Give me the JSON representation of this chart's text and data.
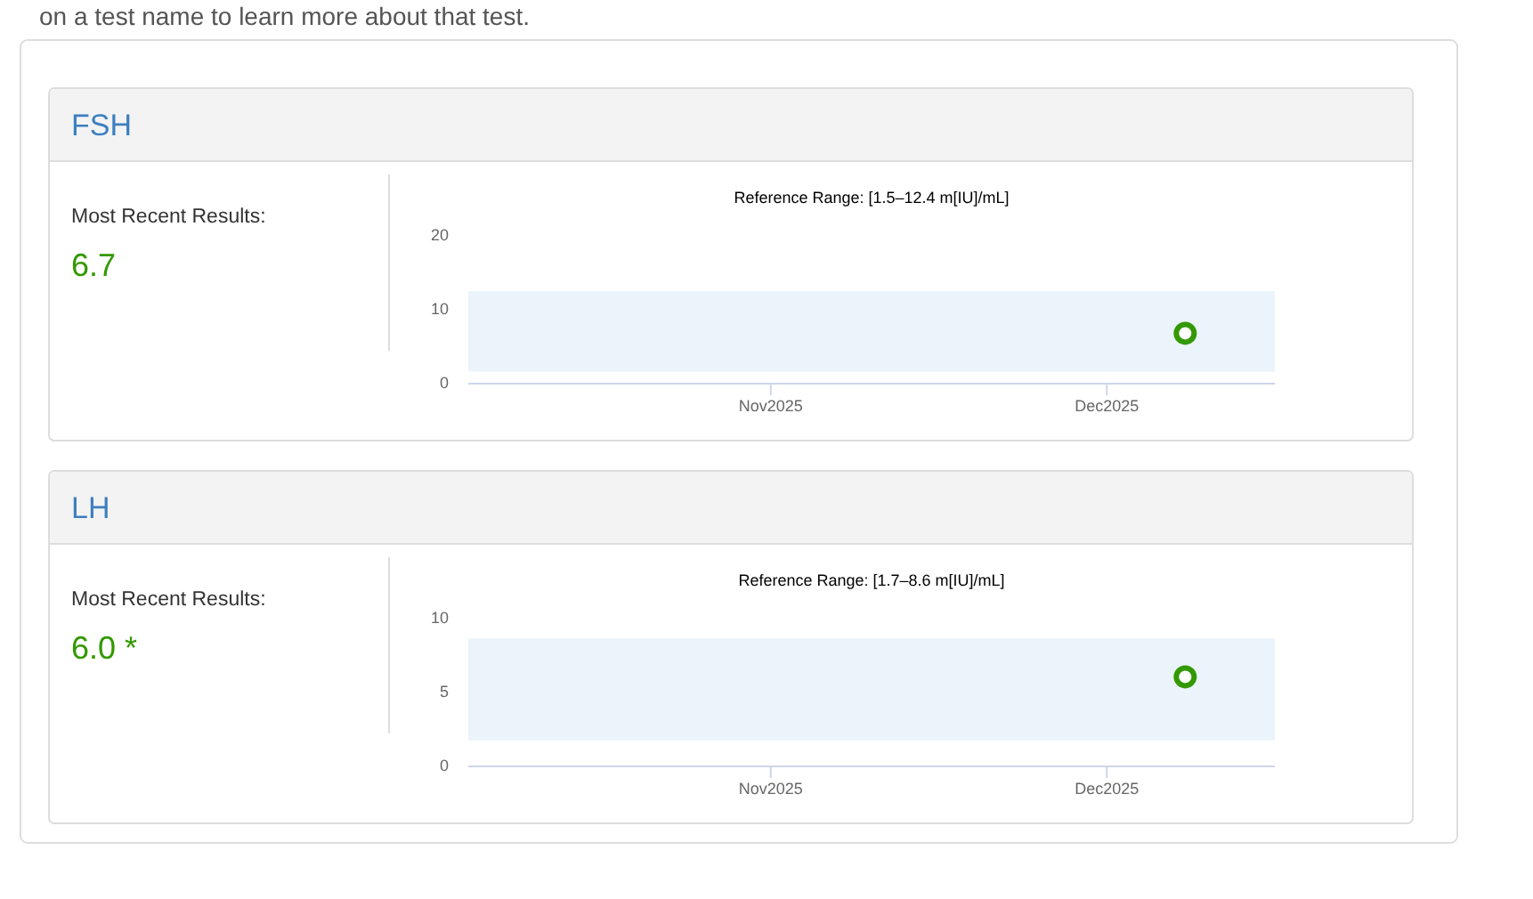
{
  "chart_data": [
    {
      "type": "other",
      "annotations": [
        "on a test name to learn more about that test."
      ]
    },
    {
      "type": "scatter",
      "title": "Reference Range: [1.5–12.4 m[IU]/mL]",
      "x": [
        "2025-12-08"
      ],
      "series": [
        {
          "color": "#339900",
          "values": [
            6.7
          ]
        }
      ],
      "xlim": [
        "2025-10-05",
        "2025-12-16"
      ],
      "xticks": [
        {
          "value": "2025-11-01",
          "label": "Nov2025"
        },
        {
          "value": "2025-12-01",
          "label": "Dec2025"
        }
      ],
      "ylim": [
        0,
        20
      ],
      "yticks": [
        0,
        10,
        20
      ],
      "bands": [
        {
          "axis": "y",
          "from": 1.5,
          "to": 12.4,
          "color": "#eaf4fa"
        }
      ],
      "marker": "circle",
      "annotations": [
        "FSH",
        "Most Recent Results:",
        "6.7"
      ]
    },
    {
      "type": "scatter",
      "title": "Reference Range: [1.7–8.6 m[IU]/mL]",
      "x": [
        "2025-12-08"
      ],
      "series": [
        {
          "color": "#339900",
          "values": [
            6.0
          ]
        }
      ],
      "xlim": [
        "2025-10-05",
        "2025-12-16"
      ],
      "xticks": [
        {
          "value": "2025-11-01",
          "label": "Nov2025"
        },
        {
          "value": "2025-12-01",
          "label": "Dec2025"
        }
      ],
      "ylim": [
        0,
        10
      ],
      "yticks": [
        0,
        5,
        10
      ],
      "bands": [
        {
          "axis": "y",
          "from": 1.7,
          "to": 8.6,
          "color": "#eaf4fa"
        }
      ],
      "marker": "circle",
      "annotations": [
        "LH",
        "Most Recent Results:",
        "6.0 *"
      ]
    }
  ]
}
